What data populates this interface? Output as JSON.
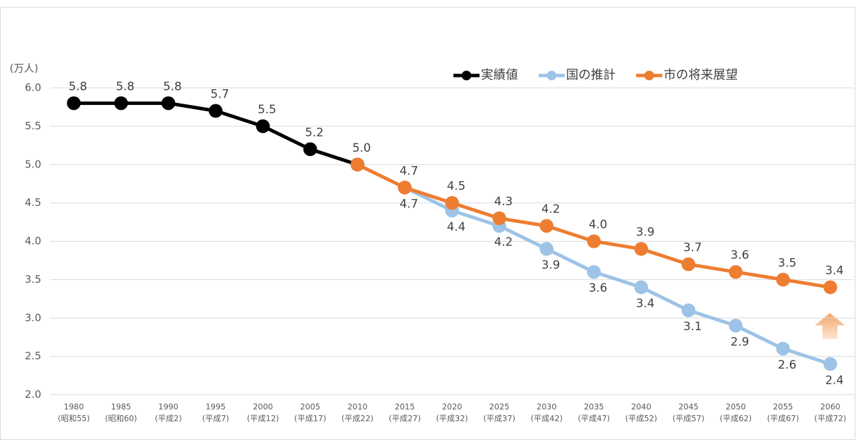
{
  "chart_data": {
    "type": "line",
    "y_axis_label": "(万人)",
    "categories": [
      [
        "1980",
        "(昭和55)"
      ],
      [
        "1985",
        "(昭和60)"
      ],
      [
        "1990",
        "(平成2)"
      ],
      [
        "1995",
        "(平成7)"
      ],
      [
        "2000",
        "(平成12)"
      ],
      [
        "2005",
        "(平成17)"
      ],
      [
        "2010",
        "(平成22)"
      ],
      [
        "2015",
        "(平成27)"
      ],
      [
        "2020",
        "(平成32)"
      ],
      [
        "2025",
        "(平成37)"
      ],
      [
        "2030",
        "(平成42)"
      ],
      [
        "2035",
        "(平成47)"
      ],
      [
        "2040",
        "(平成52)"
      ],
      [
        "2045",
        "(平成57)"
      ],
      [
        "2050",
        "(平成62)"
      ],
      [
        "2055",
        "(平成67)"
      ],
      [
        "2060",
        "(平成72)"
      ]
    ],
    "ylim": [
      2,
      6
    ],
    "yticks": [
      {
        "value": 2,
        "label": "2.0"
      },
      2.5,
      {
        "value": 3,
        "label": "3.0"
      },
      3.5,
      {
        "value": 4,
        "label": "4.0"
      },
      4.5,
      {
        "value": 5,
        "label": "5.0"
      },
      5.5,
      {
        "value": 6,
        "label": "6.0"
      }
    ],
    "grid": true,
    "legend": "top-right",
    "series": [
      {
        "name": "実績値",
        "color": "#000000",
        "label_position": "above",
        "values": [
          5.8,
          5.8,
          5.8,
          5.7,
          5.5,
          5.2,
          5,
          null,
          null,
          null,
          null,
          null,
          null,
          null,
          null,
          null,
          null
        ],
        "value_labels": [
          "5.8",
          "5.8",
          "5.8",
          "5.7",
          "5.5",
          "5.2",
          null,
          null,
          null,
          null,
          null,
          null,
          null,
          null,
          null,
          null,
          null
        ]
      },
      {
        "name": "国の推計",
        "color": "#9dc3e6",
        "label_position": "below",
        "values": [
          null,
          null,
          null,
          null,
          null,
          null,
          null,
          4.7,
          4.4,
          4.2,
          3.9,
          3.6,
          3.4,
          3.1,
          2.9,
          2.6,
          2.4
        ],
        "value_labels": [
          null,
          null,
          null,
          null,
          null,
          null,
          null,
          "4.7",
          "4.4",
          "4.2",
          "3.9",
          "3.6",
          "3.4",
          "3.1",
          "2.9",
          "2.6",
          "2.4"
        ]
      },
      {
        "name": "市の将来展望",
        "color": "#ed7d31",
        "label_position": "above",
        "values": [
          null,
          null,
          null,
          null,
          null,
          null,
          5,
          4.7,
          4.5,
          4.3,
          4.2,
          4,
          3.9,
          3.7,
          3.6,
          3.5,
          3.4
        ],
        "value_labels": [
          null,
          null,
          null,
          null,
          null,
          null,
          "5.0",
          "4.7",
          "4.5",
          "4.3",
          "4.2",
          "4.0",
          "3.9",
          "3.7",
          "3.6",
          "3.5",
          "3.4"
        ]
      }
    ]
  }
}
